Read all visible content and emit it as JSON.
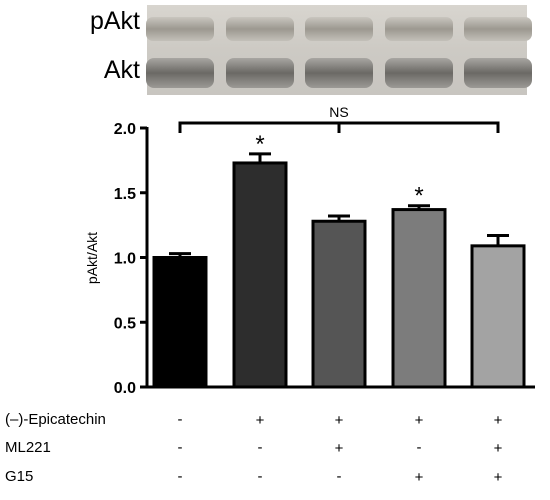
{
  "blot": {
    "rows": [
      {
        "label": "pAkt"
      },
      {
        "label": "Akt"
      }
    ]
  },
  "chart_data": {
    "type": "bar",
    "ylabel": "pAkt/Akt",
    "ylim": [
      0,
      2.0
    ],
    "yticks": [
      0.0,
      0.5,
      1.0,
      1.5,
      2.0
    ],
    "ytick_labels": [
      "0.0",
      "0.5",
      "1.0",
      "1.5",
      "2.0"
    ],
    "grid": false,
    "values": [
      1.0,
      1.73,
      1.28,
      1.37,
      1.09
    ],
    "errors": [
      0.03,
      0.07,
      0.04,
      0.03,
      0.08
    ],
    "colors": [
      "#000000",
      "#2d2d2d",
      "#555555",
      "#7c7c7c",
      "#a3a3a3"
    ],
    "significance": [
      "",
      "*",
      "",
      "*",
      ""
    ],
    "bracket": {
      "from": 0,
      "to": 4,
      "label": "NS"
    },
    "conditions": [
      {
        "label": "(–)-Epicatechin",
        "values": [
          "-",
          "+",
          "+",
          "+",
          "+"
        ]
      },
      {
        "label": "ML221",
        "values": [
          "-",
          "-",
          "+",
          "-",
          "+"
        ]
      },
      {
        "label": "G15",
        "values": [
          "-",
          "-",
          "-",
          "+",
          "+"
        ]
      }
    ]
  }
}
